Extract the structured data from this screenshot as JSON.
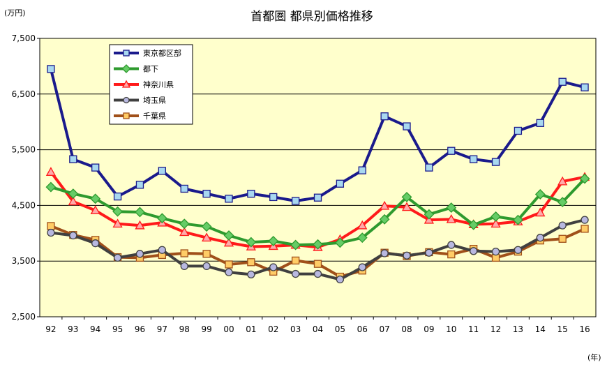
{
  "chart_data": {
    "type": "line",
    "title": "首都圏 都県別価格推移",
    "y_unit": "(万円)",
    "x_unit": "(年)",
    "xlabel": "",
    "ylabel": "",
    "ylim": [
      2500,
      7500
    ],
    "yticks": [
      "2,500",
      "3,500",
      "4,500",
      "5,500",
      "6,500",
      "7,500"
    ],
    "ytick_values": [
      2500,
      3500,
      4500,
      5500,
      6500,
      7500
    ],
    "categories": [
      "92",
      "93",
      "94",
      "95",
      "96",
      "97",
      "98",
      "99",
      "00",
      "01",
      "02",
      "03",
      "04",
      "05",
      "06",
      "07",
      "08",
      "09",
      "10",
      "11",
      "12",
      "13",
      "14",
      "15",
      "16"
    ],
    "grid": true,
    "legend_position": "top-left",
    "plot_background": "#ffffcc",
    "series": [
      {
        "name": "東京都区部",
        "color": "#1a1a8c",
        "marker": "square",
        "marker_fill": "#a8d8f0",
        "values": [
          6950,
          5330,
          5180,
          4660,
          4870,
          5120,
          4800,
          4710,
          4620,
          4710,
          4650,
          4580,
          4640,
          4890,
          5130,
          6100,
          5920,
          5180,
          5480,
          5330,
          5280,
          5840,
          5980,
          6720,
          6620
        ]
      },
      {
        "name": "都下",
        "color": "#2e9a2e",
        "marker": "diamond",
        "marker_fill": "#66cc66",
        "values": [
          4830,
          4710,
          4620,
          4390,
          4380,
          4270,
          4170,
          4120,
          3960,
          3840,
          3860,
          3790,
          3800,
          3830,
          3920,
          4250,
          4650,
          4340,
          4460,
          4150,
          4300,
          4240,
          4700,
          4560,
          4980
        ]
      },
      {
        "name": "神奈川県",
        "color": "#ff1a1a",
        "marker": "triangle",
        "marker_fill": "#ffaaaa",
        "values": [
          5100,
          4570,
          4410,
          4170,
          4140,
          4190,
          4020,
          3920,
          3830,
          3760,
          3770,
          3790,
          3750,
          3890,
          4140,
          4490,
          4470,
          4240,
          4250,
          4160,
          4170,
          4210,
          4370,
          4930,
          5010
        ]
      },
      {
        "name": "埼玉県",
        "color": "#404040",
        "marker": "circle",
        "marker_fill": "#b8b8e0",
        "values": [
          4010,
          3960,
          3820,
          3560,
          3630,
          3700,
          3410,
          3410,
          3300,
          3260,
          3390,
          3270,
          3270,
          3170,
          3390,
          3640,
          3600,
          3650,
          3790,
          3680,
          3670,
          3700,
          3920,
          4140,
          4240
        ]
      },
      {
        "name": "千葉県",
        "color": "#a0501a",
        "marker": "square",
        "marker_fill": "#ffcc66",
        "values": [
          4130,
          3970,
          3880,
          3570,
          3560,
          3610,
          3640,
          3630,
          3440,
          3480,
          3310,
          3510,
          3450,
          3220,
          3330,
          3650,
          3590,
          3660,
          3620,
          3720,
          3560,
          3670,
          3870,
          3900,
          4080
        ]
      }
    ]
  }
}
